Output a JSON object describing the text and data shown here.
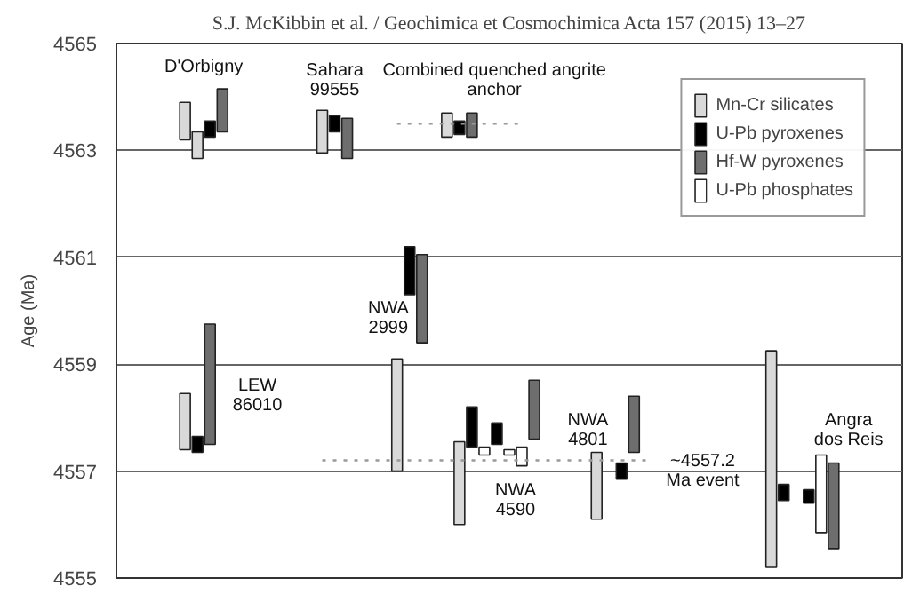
{
  "chart_data": {
    "type": "bar",
    "title": "S.J. McKibbin et al. / Geochimica et Cosmochimica Acta 157 (2015) 13–27",
    "ylabel": "Age (Ma)",
    "categories": [
      null,
      null,
      null,
      null,
      null,
      null,
      null,
      null,
      null,
      null,
      null,
      null,
      null,
      null,
      null,
      null,
      null,
      null,
      null,
      null,
      null,
      null,
      null,
      null,
      null,
      null,
      null,
      null,
      null,
      null,
      null,
      null,
      null,
      null,
      null,
      null,
      null,
      null,
      null,
      null,
      null,
      null,
      null,
      null,
      null,
      null,
      null,
      null,
      null,
      null,
      null,
      null,
      null,
      null,
      null,
      null,
      null,
      null,
      null,
      null,
      null,
      null,
      null
    ],
    "ylim": [
      4555,
      4565
    ],
    "yticks": [
      4555,
      4557,
      4559,
      4561,
      4563,
      4565
    ],
    "tick_labels": "y",
    "grid": "y",
    "legend": "top right",
    "series": [
      {
        "name": "Mn-Cr silicates",
        "color": "#d9d9d9",
        "values": [
          null,
          null,
          null,
          null,
          null,
          0.7,
          0.5,
          null,
          null,
          null,
          null,
          null,
          null,
          null,
          null,
          null,
          0.8,
          null,
          null,
          null,
          null,
          null,
          2.1,
          null,
          null,
          null,
          0.45,
          1.55,
          null,
          null,
          null,
          null,
          null,
          null,
          null,
          null,
          null,
          null,
          1.25,
          null,
          null,
          null,
          null,
          null,
          null,
          null,
          null,
          null,
          null,
          null,
          null,
          null,
          4.05,
          null,
          null,
          null,
          null,
          null,
          null,
          null,
          null,
          null,
          null
        ],
        "base": [
          null,
          null,
          null,
          null,
          null,
          4563.2,
          4562.85,
          null,
          null,
          null,
          null,
          null,
          null,
          null,
          null,
          null,
          4562.95,
          null,
          null,
          null,
          null,
          null,
          4557.0,
          null,
          null,
          null,
          4563.25,
          4556.0,
          null,
          null,
          null,
          null,
          null,
          null,
          null,
          null,
          null,
          null,
          4556.1,
          null,
          null,
          null,
          null,
          null,
          null,
          null,
          null,
          null,
          null,
          null,
          null,
          null,
          4555.2,
          null,
          null,
          null,
          null,
          null,
          null,
          null,
          null,
          null,
          null
        ]
      },
      {
        "name": "U-Pb pyroxenes",
        "color": "#000000",
        "values": [
          null,
          null,
          null,
          null,
          null,
          null,
          0.3,
          0.3,
          null,
          null,
          null,
          null,
          null,
          null,
          null,
          null,
          null,
          0.3,
          null,
          null,
          null,
          null,
          null,
          0.9,
          null,
          null,
          null,
          0.25,
          0.75,
          null,
          0.4,
          null,
          null,
          null,
          null,
          null,
          null,
          null,
          null,
          null,
          0.3,
          null,
          null,
          null,
          null,
          null,
          null,
          null,
          null,
          null,
          null,
          null,
          null,
          0.3,
          null,
          0.25,
          null,
          null,
          null,
          null,
          null,
          null,
          null
        ],
        "base": [
          null,
          null,
          null,
          null,
          null,
          null,
          4557.35,
          4563.25,
          null,
          null,
          null,
          null,
          null,
          null,
          null,
          null,
          null,
          4563.35,
          null,
          null,
          null,
          null,
          null,
          4560.3,
          null,
          null,
          null,
          4563.3,
          4557.45,
          null,
          4557.5,
          null,
          null,
          null,
          null,
          null,
          null,
          null,
          null,
          null,
          4556.85,
          null,
          null,
          null,
          null,
          null,
          null,
          null,
          null,
          null,
          null,
          null,
          null,
          4556.45,
          null,
          4556.4,
          null,
          null,
          null,
          null,
          null,
          null,
          null
        ]
      },
      {
        "name": "Hf-W pyroxenes",
        "color": "#6e6e6e",
        "values": [
          null,
          null,
          null,
          null,
          null,
          null,
          null,
          2.25,
          0.8,
          null,
          null,
          null,
          null,
          null,
          null,
          null,
          null,
          null,
          0.75,
          null,
          null,
          null,
          null,
          null,
          1.65,
          null,
          null,
          null,
          0.45,
          null,
          null,
          null,
          null,
          1.1,
          null,
          null,
          null,
          null,
          null,
          null,
          null,
          1.05,
          null,
          null,
          null,
          null,
          null,
          null,
          null,
          null,
          null,
          null,
          null,
          null,
          null,
          null,
          null,
          1.6,
          null,
          null,
          null,
          null,
          null
        ],
        "base": [
          null,
          null,
          null,
          null,
          null,
          null,
          null,
          4557.5,
          4563.35,
          null,
          null,
          null,
          null,
          null,
          null,
          null,
          null,
          null,
          4562.85,
          null,
          null,
          null,
          null,
          null,
          4559.4,
          null,
          null,
          null,
          4563.25,
          null,
          null,
          null,
          null,
          4557.6,
          null,
          null,
          null,
          null,
          null,
          null,
          null,
          4557.35,
          null,
          null,
          null,
          null,
          null,
          null,
          null,
          null,
          null,
          null,
          null,
          null,
          null,
          null,
          null,
          4555.55,
          null,
          null,
          null,
          null,
          null
        ]
      },
      {
        "name": "U-Pb phosphates",
        "color": "#ffffff",
        "values": [
          null,
          null,
          null,
          null,
          null,
          null,
          null,
          null,
          null,
          null,
          null,
          null,
          null,
          null,
          null,
          null,
          null,
          null,
          null,
          null,
          null,
          null,
          null,
          null,
          null,
          null,
          null,
          null,
          null,
          0.15,
          null,
          0.1,
          0.35,
          null,
          null,
          null,
          null,
          null,
          null,
          null,
          null,
          null,
          null,
          null,
          null,
          null,
          null,
          null,
          null,
          null,
          null,
          null,
          null,
          null,
          null,
          null,
          1.45,
          null,
          null,
          null,
          null,
          null,
          null
        ],
        "base": [
          null,
          null,
          null,
          null,
          null,
          null,
          null,
          null,
          null,
          null,
          null,
          null,
          null,
          null,
          null,
          null,
          null,
          null,
          null,
          null,
          null,
          null,
          null,
          null,
          null,
          null,
          null,
          null,
          null,
          4557.3,
          null,
          4557.3,
          4557.1,
          null,
          null,
          null,
          null,
          null,
          null,
          null,
          null,
          null,
          null,
          null,
          null,
          null,
          null,
          null,
          null,
          null,
          null,
          null,
          null,
          null,
          null,
          null,
          4555.85,
          null,
          null,
          null,
          null,
          null,
          null
        ]
      },
      {
        "color": "#d9d9d9",
        "values": [
          null,
          null,
          null,
          null,
          null,
          1.05,
          null,
          null,
          null,
          null,
          null,
          null,
          null,
          null,
          null,
          null,
          null,
          null,
          null,
          null,
          null,
          null,
          null,
          null,
          null,
          null,
          null,
          null,
          null,
          null,
          null,
          null,
          null,
          null,
          null,
          null,
          null,
          null,
          null,
          null,
          null,
          null,
          null,
          null,
          null,
          null,
          null,
          null,
          null,
          null,
          null,
          null,
          null,
          null,
          null,
          null,
          null,
          null,
          null,
          null,
          null,
          null,
          null
        ],
        "base": [
          null,
          null,
          null,
          null,
          null,
          4557.4,
          null,
          null,
          null,
          null,
          null,
          null,
          null,
          null,
          null,
          null,
          null,
          null,
          null,
          null,
          null,
          null,
          null,
          null,
          null,
          null,
          null,
          null,
          null,
          null,
          null,
          null,
          null,
          null,
          null,
          null,
          null,
          null,
          null,
          null,
          null,
          null,
          null,
          null,
          null,
          null,
          null,
          null,
          null,
          null,
          null,
          null,
          null,
          null,
          null,
          null,
          null,
          null,
          null,
          null,
          null,
          null,
          null
        ]
      },
      {
        "type": "line",
        "line_style": "dotted",
        "color": "#999999",
        "values": [
          null,
          null,
          null,
          null,
          null,
          null,
          null,
          null,
          null,
          null,
          null,
          null,
          null,
          null,
          null,
          null,
          null,
          null,
          null,
          null,
          null,
          null,
          4563.5,
          4563.5,
          4563.5,
          4563.5,
          4563.5,
          4563.5,
          4563.5,
          4563.5,
          4563.5,
          4563.5,
          4563.5,
          null,
          null,
          null,
          null,
          null,
          null,
          null,
          null,
          null,
          null,
          null,
          null,
          null,
          null,
          null,
          null,
          null,
          null,
          null,
          null,
          null,
          null,
          null,
          null,
          null,
          null,
          null,
          null,
          null,
          null
        ]
      },
      {
        "type": "line",
        "line_style": "dotted",
        "color": "#999999",
        "values": [
          null,
          null,
          null,
          null,
          null,
          null,
          null,
          null,
          null,
          null,
          null,
          null,
          null,
          null,
          null,
          null,
          4557.2,
          4557.2,
          4557.2,
          4557.2,
          4557.2,
          4557.2,
          4557.2,
          4557.2,
          4557.2,
          4557.2,
          4557.2,
          4557.2,
          4557.2,
          4557.2,
          4557.2,
          4557.2,
          4557.2,
          4557.2,
          4557.2,
          4557.2,
          4557.2,
          4557.2,
          4557.2,
          4557.2,
          4557.2,
          4557.2,
          4557.2,
          null,
          null,
          null,
          null,
          null,
          null,
          null,
          null,
          null,
          null,
          null,
          null,
          null,
          null,
          null,
          null,
          null,
          null,
          null,
          null
        ]
      }
    ],
    "annotations": [
      "D'Orbigny",
      "Sahara\n99555",
      "Combined quenched angrite\nanchor",
      "NWA\n2999",
      "LEW\n86010",
      "NWA\n4590",
      "NWA\n4801",
      "~4557.2\nMa event",
      "Angra\ndos Reis"
    ]
  }
}
